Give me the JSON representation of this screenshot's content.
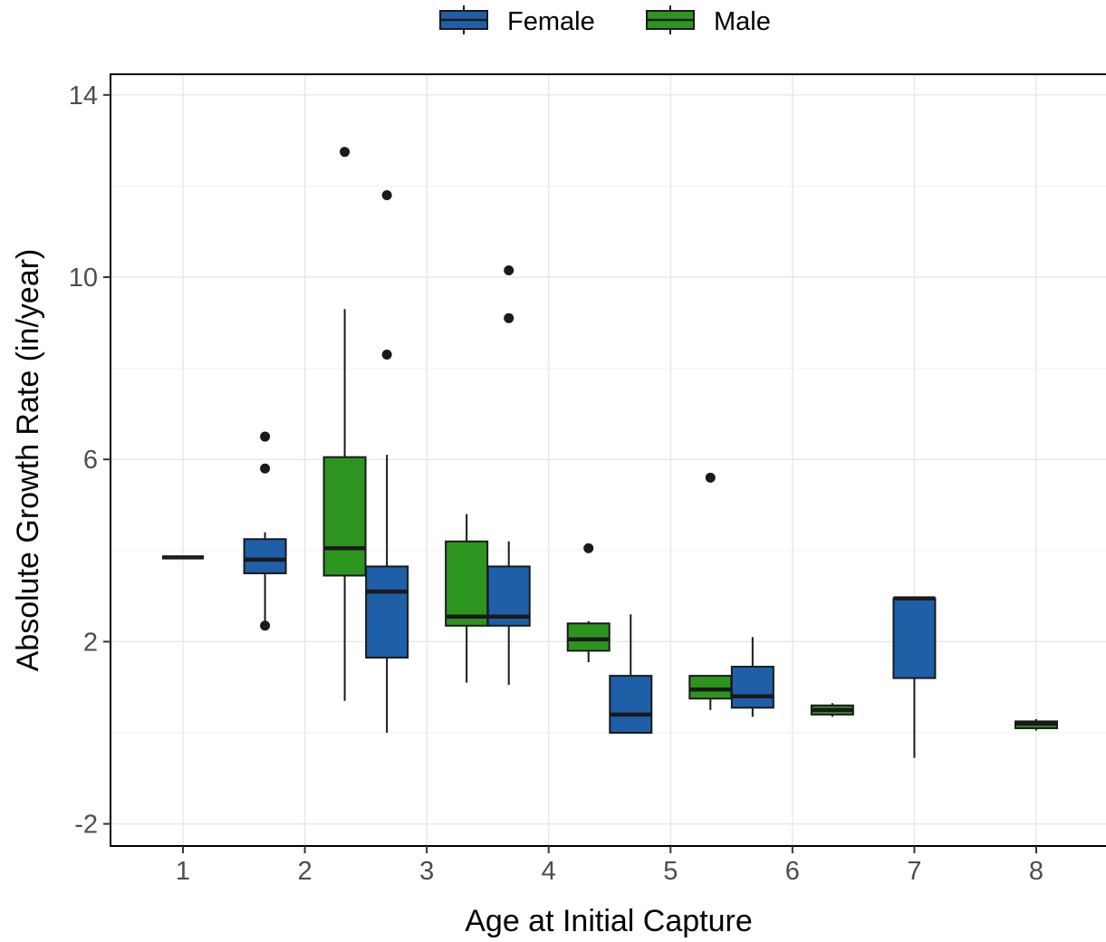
{
  "chart_data": {
    "type": "box",
    "xlabel": "Age at Initial Capture",
    "ylabel": "Absolute Growth Rate (in/year)",
    "categories": [
      "1",
      "2",
      "3",
      "4",
      "5",
      "6",
      "7",
      "8"
    ],
    "yticks": [
      -2,
      2,
      6,
      10,
      14
    ],
    "ylim": [
      -2.5,
      14.5
    ],
    "grid": true,
    "legend_position": "top",
    "series": [
      {
        "name": "Female",
        "color": "#1f5fa8",
        "boxes": [
          {
            "category": "1",
            "min": 3.85,
            "q1": 3.85,
            "median": 3.85,
            "q3": 3.85,
            "max": 3.85,
            "outliers": []
          },
          {
            "category": "2",
            "min": 2.45,
            "q1": 3.5,
            "median": 3.8,
            "q3": 4.25,
            "max": 4.4,
            "outliers": [
              2.35,
              5.8,
              6.5
            ]
          },
          {
            "category": "3",
            "min": 0.0,
            "q1": 1.65,
            "median": 3.1,
            "q3": 3.65,
            "max": 6.1,
            "outliers": [
              8.3,
              11.8
            ]
          },
          {
            "category": "4",
            "min": 1.05,
            "q1": 2.35,
            "median": 2.55,
            "q3": 3.65,
            "max": 4.2,
            "outliers": [
              9.1,
              10.15
            ]
          },
          {
            "category": "5",
            "min": 0.0,
            "q1": 0.0,
            "median": 0.4,
            "q3": 1.25,
            "max": 2.6,
            "outliers": []
          },
          {
            "category": "6",
            "min": 0.35,
            "q1": 0.55,
            "median": 0.8,
            "q3": 1.45,
            "max": 2.1,
            "outliers": []
          },
          {
            "category": "7",
            "min": -0.55,
            "q1": 1.2,
            "median": 2.95,
            "q3": 2.95,
            "max": 2.95,
            "outliers": []
          }
        ]
      },
      {
        "name": "Male",
        "color": "#2e9420",
        "boxes": [
          {
            "category": "2",
            "min": 0.7,
            "q1": 3.45,
            "median": 4.05,
            "q3": 6.05,
            "max": 9.3,
            "outliers": [
              12.75
            ]
          },
          {
            "category": "3",
            "min": 1.1,
            "q1": 2.35,
            "median": 2.55,
            "q3": 4.2,
            "max": 4.8,
            "outliers": []
          },
          {
            "category": "4",
            "min": 1.55,
            "q1": 1.8,
            "median": 2.05,
            "q3": 2.4,
            "max": 2.45,
            "outliers": [
              4.05
            ]
          },
          {
            "category": "5",
            "min": 0.5,
            "q1": 0.75,
            "median": 0.95,
            "q3": 1.25,
            "max": 1.25,
            "outliers": [
              5.6
            ]
          },
          {
            "category": "6",
            "min": 0.35,
            "q1": 0.4,
            "median": 0.5,
            "q3": 0.6,
            "max": 0.65,
            "outliers": []
          },
          {
            "category": "8",
            "min": 0.05,
            "q1": 0.1,
            "median": 0.2,
            "q3": 0.25,
            "max": 0.3,
            "outliers": []
          }
        ]
      }
    ]
  }
}
